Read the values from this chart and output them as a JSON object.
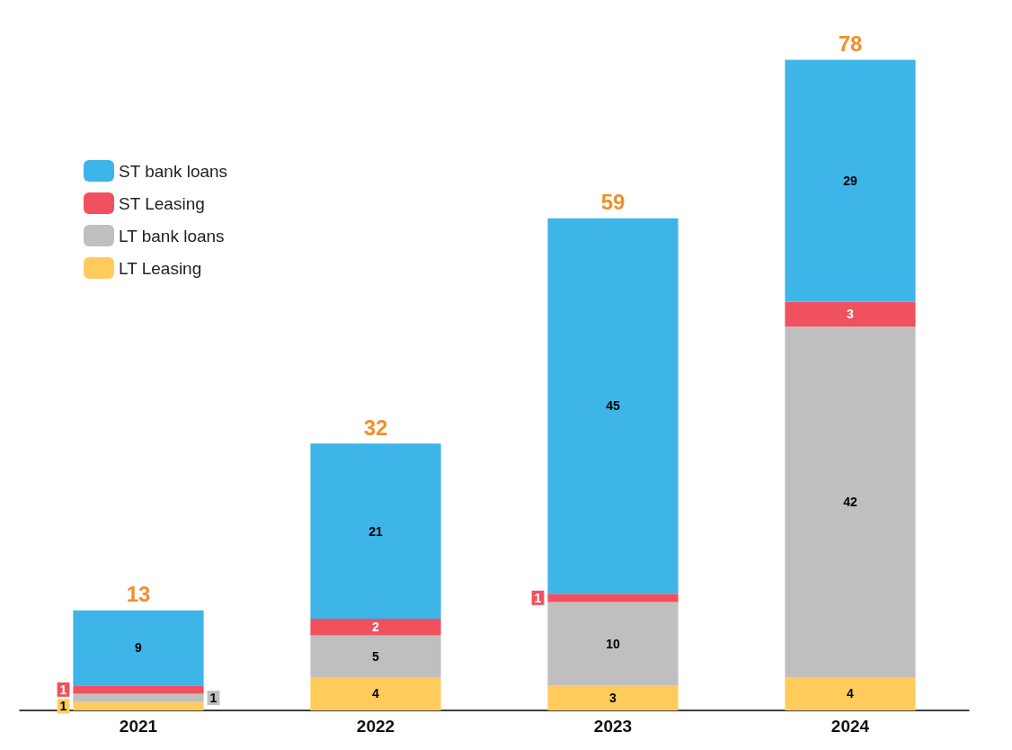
{
  "chart_data": {
    "type": "bar",
    "stacked": true,
    "categories": [
      "2021",
      "2022",
      "2023",
      "2024"
    ],
    "series": [
      {
        "name": "LT Leasing",
        "color": "#ffcc5c",
        "values": [
          1,
          4,
          3,
          4
        ]
      },
      {
        "name": "LT bank loans",
        "color": "#bfbfbf",
        "values": [
          1,
          5,
          10,
          42
        ]
      },
      {
        "name": "ST Leasing",
        "color": "#f0515e",
        "values": [
          1,
          2,
          1,
          3
        ]
      },
      {
        "name": "ST bank loans",
        "color": "#3db5e8",
        "values": [
          9,
          21,
          45,
          29
        ]
      }
    ],
    "totals": [
      "13",
      "32",
      "59",
      "78"
    ],
    "data_labels": true,
    "legend": "top left",
    "grid": false
  }
}
